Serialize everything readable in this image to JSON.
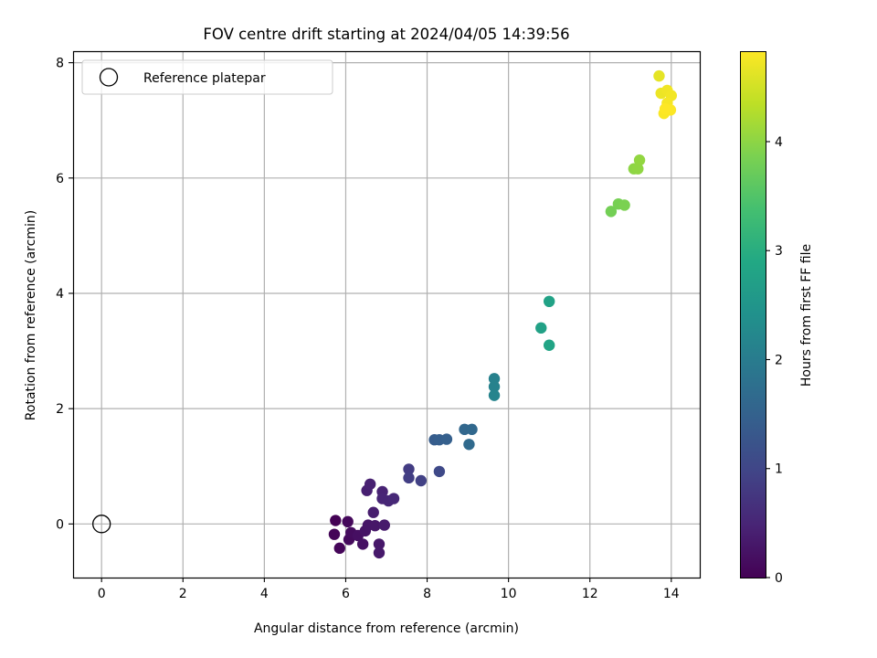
{
  "chart_data": {
    "type": "scatter",
    "title": "FOV centre drift starting at 2024/04/05 14:39:56",
    "xlabel": "Angular distance from reference (arcmin)",
    "ylabel": "Rotation from reference (arcmin)",
    "xlim": [
      -0.7,
      14.7
    ],
    "ylim": [
      -0.93,
      8.2
    ],
    "xticks": [
      0,
      2,
      4,
      6,
      8,
      10,
      12,
      14
    ],
    "yticks": [
      0,
      2,
      4,
      6,
      8
    ],
    "xtick_labels": [
      "0",
      "2",
      "4",
      "6",
      "8",
      "10",
      "12",
      "14"
    ],
    "ytick_labels": [
      "0",
      "2",
      "4",
      "6",
      "8"
    ],
    "grid": true,
    "legend": {
      "position": "top-left",
      "label": "Reference platepar"
    },
    "reference": {
      "x": 0,
      "y": 0
    },
    "colorbar": {
      "label": "Hours from first FF file",
      "range": [
        0,
        4.83
      ],
      "ticks": [
        0,
        1,
        2,
        3,
        4
      ],
      "tick_labels": [
        "0",
        "1",
        "2",
        "3",
        "4"
      ],
      "colormap": "viridis"
    },
    "points": [
      {
        "x": 5.75,
        "y": 0.06,
        "c": 0.02
      },
      {
        "x": 5.72,
        "y": -0.18,
        "c": 0.05
      },
      {
        "x": 5.85,
        "y": -0.42,
        "c": 0.07
      },
      {
        "x": 6.05,
        "y": 0.04,
        "c": 0.1
      },
      {
        "x": 6.08,
        "y": -0.27,
        "c": 0.12
      },
      {
        "x": 6.13,
        "y": -0.15,
        "c": 0.15
      },
      {
        "x": 6.3,
        "y": -0.2,
        "c": 0.2
      },
      {
        "x": 6.42,
        "y": -0.35,
        "c": 0.22
      },
      {
        "x": 6.48,
        "y": -0.12,
        "c": 0.25
      },
      {
        "x": 6.55,
        "y": -0.02,
        "c": 0.28
      },
      {
        "x": 6.72,
        "y": -0.03,
        "c": 0.3
      },
      {
        "x": 6.82,
        "y": -0.35,
        "c": 0.32
      },
      {
        "x": 6.82,
        "y": -0.5,
        "c": 0.33
      },
      {
        "x": 6.95,
        "y": -0.02,
        "c": 0.35
      },
      {
        "x": 6.68,
        "y": 0.2,
        "c": 0.38
      },
      {
        "x": 6.52,
        "y": 0.58,
        "c": 0.42
      },
      {
        "x": 6.6,
        "y": 0.69,
        "c": 0.44
      },
      {
        "x": 6.9,
        "y": 0.56,
        "c": 0.47
      },
      {
        "x": 6.9,
        "y": 0.44,
        "c": 0.5
      },
      {
        "x": 7.05,
        "y": 0.4,
        "c": 0.52
      },
      {
        "x": 7.18,
        "y": 0.44,
        "c": 0.55
      },
      {
        "x": 7.55,
        "y": 0.95,
        "c": 0.85
      },
      {
        "x": 7.55,
        "y": 0.8,
        "c": 0.88
      },
      {
        "x": 7.85,
        "y": 0.75,
        "c": 0.92
      },
      {
        "x": 8.3,
        "y": 0.91,
        "c": 1.05
      },
      {
        "x": 8.18,
        "y": 1.46,
        "c": 1.4
      },
      {
        "x": 8.3,
        "y": 1.46,
        "c": 1.43
      },
      {
        "x": 8.48,
        "y": 1.47,
        "c": 1.46
      },
      {
        "x": 8.92,
        "y": 1.64,
        "c": 1.6
      },
      {
        "x": 9.1,
        "y": 1.64,
        "c": 1.63
      },
      {
        "x": 9.03,
        "y": 1.38,
        "c": 1.66
      },
      {
        "x": 9.65,
        "y": 2.52,
        "c": 2.1
      },
      {
        "x": 9.65,
        "y": 2.38,
        "c": 2.13
      },
      {
        "x": 9.65,
        "y": 2.23,
        "c": 2.16
      },
      {
        "x": 10.8,
        "y": 3.4,
        "c": 2.75
      },
      {
        "x": 11.0,
        "y": 3.86,
        "c": 2.78
      },
      {
        "x": 11.0,
        "y": 3.1,
        "c": 2.81
      },
      {
        "x": 12.52,
        "y": 5.42,
        "c": 3.8
      },
      {
        "x": 12.7,
        "y": 5.55,
        "c": 3.83
      },
      {
        "x": 12.85,
        "y": 5.53,
        "c": 3.86
      },
      {
        "x": 13.08,
        "y": 6.16,
        "c": 4.0
      },
      {
        "x": 13.18,
        "y": 6.16,
        "c": 4.02
      },
      {
        "x": 13.22,
        "y": 6.31,
        "c": 4.04
      },
      {
        "x": 13.7,
        "y": 7.77,
        "c": 4.65
      },
      {
        "x": 13.75,
        "y": 7.47,
        "c": 4.7
      },
      {
        "x": 13.9,
        "y": 7.52,
        "c": 4.73
      },
      {
        "x": 14.0,
        "y": 7.43,
        "c": 4.75
      },
      {
        "x": 13.9,
        "y": 7.3,
        "c": 4.78
      },
      {
        "x": 13.82,
        "y": 7.12,
        "c": 4.8
      },
      {
        "x": 13.98,
        "y": 7.18,
        "c": 4.82
      },
      {
        "x": 13.85,
        "y": 7.2,
        "c": 4.83
      }
    ]
  }
}
